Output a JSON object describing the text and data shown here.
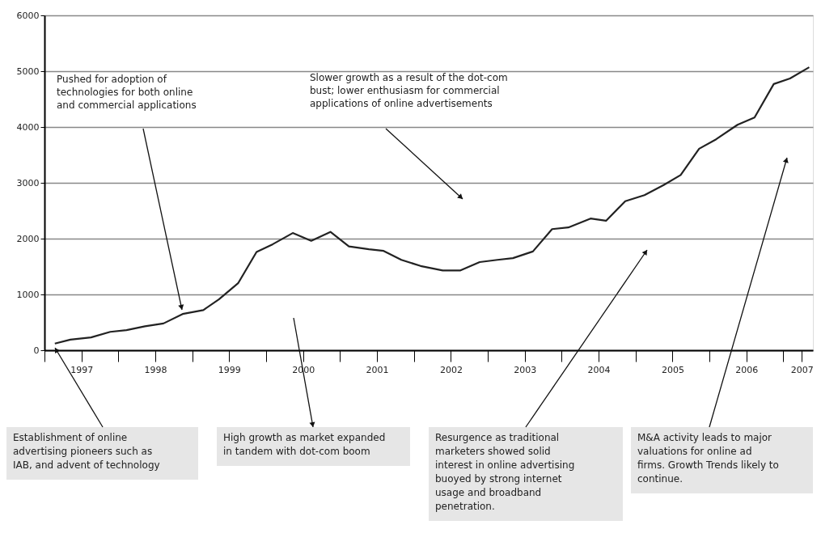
{
  "chart_data": {
    "type": "line",
    "color": "#222222",
    "x": [
      1997.14,
      1997.35,
      1997.63,
      1997.89,
      1998.11,
      1998.36,
      1998.61,
      1998.87,
      1999.15,
      1999.36,
      1999.62,
      1999.87,
      2000.09,
      2000.36,
      2000.61,
      2000.87,
      2001.12,
      2001.39,
      2001.59,
      2001.83,
      2002.09,
      2002.39,
      2002.63,
      2002.89,
      2003.13,
      2003.34,
      2003.61,
      2003.87,
      2004.09,
      2004.39,
      2004.6,
      2004.86,
      2005.12,
      2005.38,
      2005.61,
      2005.86,
      2006.09,
      2006.38,
      2006.61,
      2006.87,
      2007.09,
      2007.35
    ],
    "values": [
      120,
      190,
      230,
      330,
      360,
      430,
      480,
      650,
      720,
      910,
      1200,
      1760,
      1900,
      2100,
      1960,
      2120,
      1860,
      1810,
      1780,
      1620,
      1510,
      1430,
      1430,
      1580,
      1620,
      1650,
      1770,
      2170,
      2200,
      2360,
      2320,
      2670,
      2780,
      2960,
      3140,
      3610,
      3780,
      4040,
      4170,
      4770,
      4870,
      5070
    ],
    "xlim": [
      1997,
      2007.4
    ],
    "xticks": [
      {
        "value": 1997,
        "label": null
      },
      {
        "value": 1997.5,
        "label": "1997"
      },
      {
        "value": 1998,
        "label": null
      },
      {
        "value": 1998.5,
        "label": "1998"
      },
      {
        "value": 1999,
        "label": null
      },
      {
        "value": 1999.5,
        "label": "1999"
      },
      {
        "value": 2000,
        "label": null
      },
      {
        "value": 2000.5,
        "label": "2000"
      },
      {
        "value": 2001,
        "label": null
      },
      {
        "value": 2001.5,
        "label": "2001"
      },
      {
        "value": 2002,
        "label": null
      },
      {
        "value": 2002.5,
        "label": "2002"
      },
      {
        "value": 2003,
        "label": null
      },
      {
        "value": 2003.5,
        "label": "2003"
      },
      {
        "value": 2004,
        "label": null
      },
      {
        "value": 2004.5,
        "label": "2004"
      },
      {
        "value": 2005,
        "label": null
      },
      {
        "value": 2005.5,
        "label": "2005"
      },
      {
        "value": 2006,
        "label": null
      },
      {
        "value": 2006.5,
        "label": "2006"
      },
      {
        "value": 2007,
        "label": null
      },
      {
        "value": 2007.25,
        "label": "2007"
      }
    ],
    "ylim": [
      0,
      6000
    ],
    "yticks": [
      0,
      1000,
      2000,
      3000,
      4000,
      5000,
      6000
    ],
    "grid": "y",
    "annotations": [
      "Pushed for adoption of technologies for both online and commercial applications",
      "Slower growth as a result of the dot-com bust; lower enthusiasm for commercial applications of online advertisements",
      "Establishment of online advertising pioneers such as IAB, and advent of technology",
      "High growth as market expanded in tandem with dot-com boom",
      "Resurgence as traditional marketers showed solid interest in online advertising buoyed by strong internet usage and broadband penetration.",
      "M&A activity leads to major valuations for online ad firms. Growth Trends likely to continue."
    ]
  }
}
